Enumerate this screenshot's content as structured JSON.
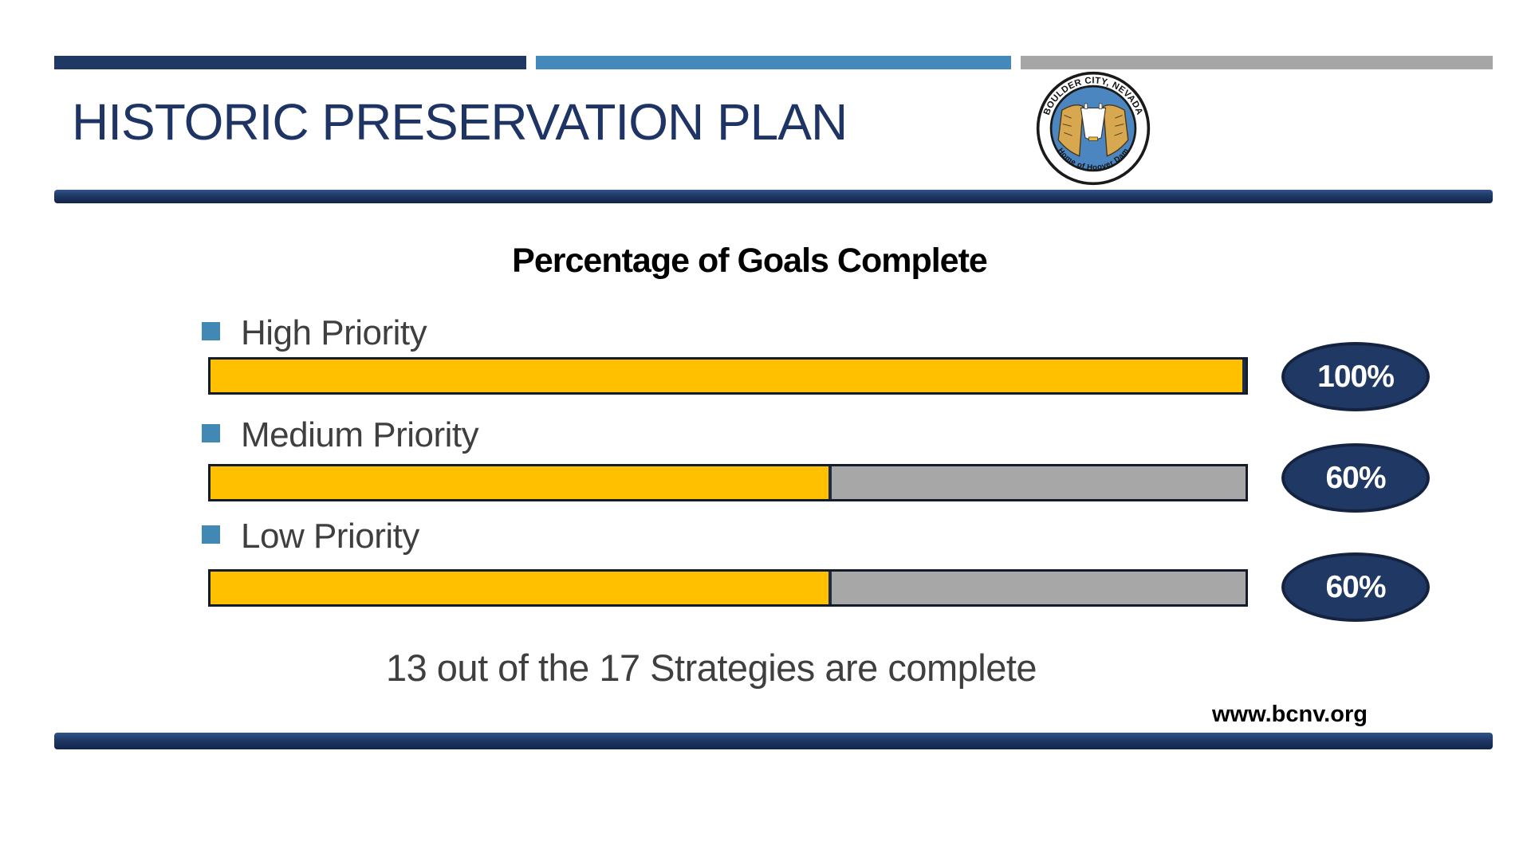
{
  "header": {
    "title": "HISTORIC PRESERVATION PLAN"
  },
  "logo": {
    "top_text": "BOULDER CITY, NEVADA",
    "bottom_text": "Home of Hoover Dam"
  },
  "chart_data": {
    "type": "bar",
    "orientation": "horizontal",
    "title": "Percentage of Goals Complete",
    "categories": [
      "High Priority",
      "Medium Priority",
      "Low Priority"
    ],
    "values": [
      100,
      60,
      60
    ],
    "value_labels": [
      "100%",
      "60%",
      "60%"
    ],
    "xlim": [
      0,
      100
    ],
    "grid": false,
    "legend": false,
    "annotation": "13 out of the 17 Strategies are complete",
    "bar_color": "#FFC000",
    "remainder_color": "#A6A6A6",
    "badge_color": "#1F3864",
    "bullet_color": "#4188B5"
  },
  "footer": {
    "url": "www.bcnv.org"
  },
  "colors": {
    "navy": "#1F3864",
    "steel_blue": "#4389B9",
    "gray": "#A6A6A6",
    "label_text": "#3F3F3F"
  }
}
